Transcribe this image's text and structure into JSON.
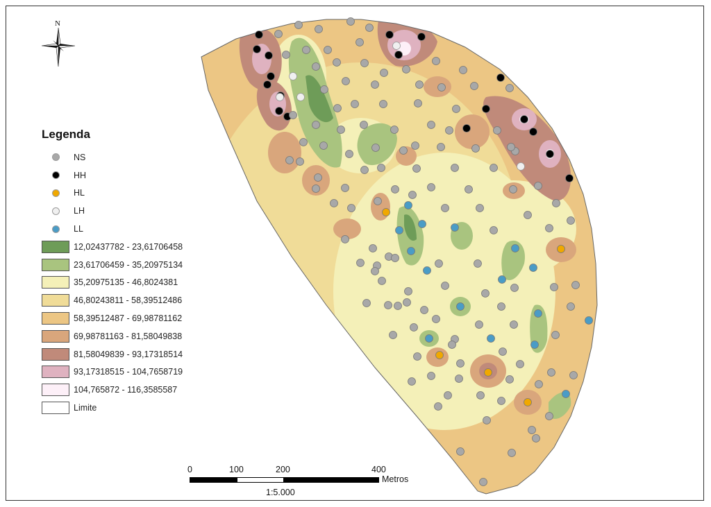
{
  "map": {
    "north_label": "N",
    "scale": {
      "ticks": [
        "0",
        "100",
        "200",
        "400"
      ],
      "unit": "Metros",
      "ratio": "1:5.000"
    }
  },
  "legend": {
    "title": "Legenda",
    "points": [
      {
        "label": "NS",
        "color": "#a8a8a8"
      },
      {
        "label": "HH",
        "color": "#000000"
      },
      {
        "label": "HL",
        "color": "#f0a800"
      },
      {
        "label": "LH",
        "color": "#f0f0f0"
      },
      {
        "label": "LL",
        "color": "#4a9cc6"
      }
    ],
    "classes": [
      {
        "label": "12,02437782 - 23,61706458",
        "color": "#6e9c58"
      },
      {
        "label": "23,61706459 - 35,20975134",
        "color": "#a9c47f"
      },
      {
        "label": "35,20975135 - 46,8024381",
        "color": "#f4f0b8"
      },
      {
        "label": "46,80243811 - 58,39512486",
        "color": "#f0dc98"
      },
      {
        "label": "58,39512487 - 69,98781162",
        "color": "#ecc684"
      },
      {
        "label": "69,98781163 - 81,58049838",
        "color": "#d9a67c"
      },
      {
        "label": "81,58049839 - 93,17318514",
        "color": "#c08a7a"
      },
      {
        "label": "93,17318515 - 104,7658719",
        "color": "#dfb2c0"
      },
      {
        "label": "104,765872 - 116,3585587",
        "color": "#fdf0f8"
      }
    ],
    "limit_label": "Limite"
  }
}
